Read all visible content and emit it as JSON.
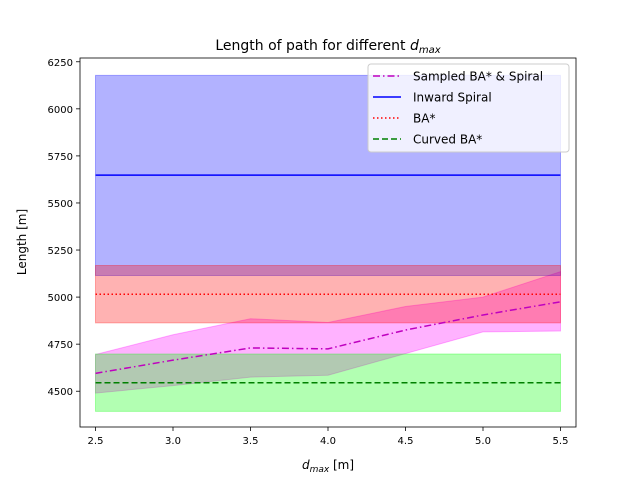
{
  "chart_data": {
    "type": "line",
    "title": "Length of path for different",
    "title_math": "d",
    "title_sub": "max",
    "xlabel_math": "d",
    "xlabel_sub": "max",
    "xlabel_unit": " [m]",
    "ylabel": "Length [m]",
    "xlim": [
      2.4,
      5.6
    ],
    "ylim": [
      4310,
      6270
    ],
    "xticks": [
      "2.5",
      "3.0",
      "3.5",
      "4.0",
      "4.5",
      "5.0",
      "5.5"
    ],
    "yticks": [
      "4500",
      "4750",
      "5000",
      "5250",
      "5500",
      "5750",
      "6000",
      "6250"
    ],
    "grid": false,
    "legend_position": "top-right",
    "x": [
      2.5,
      3.0,
      3.5,
      4.0,
      4.5,
      5.0,
      5.5
    ],
    "series": [
      {
        "name": "Sampled BA* & Spiral",
        "style": "dashdot",
        "color": "#bf00bf",
        "fill": "#ff00ff",
        "values": [
          4595,
          4665,
          4730,
          4725,
          4825,
          4905,
          4975
        ],
        "lower": [
          4490,
          4530,
          4575,
          4585,
          4700,
          4815,
          4820
        ],
        "upper": [
          4695,
          4800,
          4885,
          4865,
          4950,
          5000,
          5135
        ]
      },
      {
        "name": "Inward Spiral",
        "style": "solid",
        "color": "#0000ff",
        "fill": "#0000ff",
        "values": [
          5648,
          5648,
          5648,
          5648,
          5648,
          5648,
          5648
        ],
        "lower": [
          5115,
          5115,
          5115,
          5115,
          5115,
          5115,
          5115
        ],
        "upper": [
          6178,
          6178,
          6178,
          6178,
          6178,
          6178,
          6178
        ]
      },
      {
        "name": "BA*",
        "style": "dotted",
        "color": "#ff0000",
        "fill": "#ff0000",
        "values": [
          5015,
          5015,
          5015,
          5015,
          5015,
          5015,
          5015
        ],
        "lower": [
          4863,
          4863,
          4863,
          4863,
          4863,
          4863,
          4863
        ],
        "upper": [
          5168,
          5168,
          5168,
          5168,
          5168,
          5168,
          5168
        ]
      },
      {
        "name": "Curved BA*",
        "style": "dashed",
        "color": "#008000",
        "fill": "#00ff00",
        "values": [
          4545,
          4545,
          4545,
          4545,
          4545,
          4545,
          4545
        ],
        "lower": [
          4393,
          4393,
          4393,
          4393,
          4393,
          4393,
          4393
        ],
        "upper": [
          4698,
          4698,
          4698,
          4698,
          4698,
          4698,
          4698
        ]
      }
    ]
  }
}
